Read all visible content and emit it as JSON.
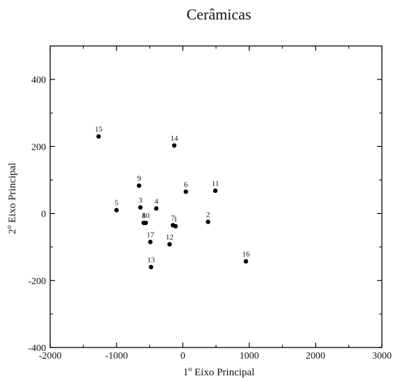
{
  "chart_data": {
    "type": "scatter",
    "title": "Cerâmicas",
    "xlabel_sup": "1",
    "xlabel": "o",
    "xlabel_rest": " Eixo Principal",
    "ylabel_sup": "2",
    "ylabel": "o",
    "ylabel_rest": " Eixo Principal",
    "xlim": [
      -2000,
      3000
    ],
    "ylim": [
      -400,
      500
    ],
    "x_ticks": [
      -2000,
      -1000,
      0,
      1000,
      2000,
      3000
    ],
    "y_ticks": [
      -400,
      -200,
      0,
      200,
      400
    ],
    "grid": false,
    "points": [
      {
        "label": "15",
        "x": -1270,
        "y": 230
      },
      {
        "label": "14",
        "x": -130,
        "y": 203
      },
      {
        "label": "9",
        "x": -660,
        "y": 83
      },
      {
        "label": "6",
        "x": 45,
        "y": 65
      },
      {
        "label": "11",
        "x": 490,
        "y": 68
      },
      {
        "label": "5",
        "x": -1000,
        "y": 10
      },
      {
        "label": "3",
        "x": -640,
        "y": 18
      },
      {
        "label": "4",
        "x": -400,
        "y": 15
      },
      {
        "label": "8",
        "x": -590,
        "y": -28
      },
      {
        "label": "10",
        "x": -560,
        "y": -28
      },
      {
        "label": "7",
        "x": -150,
        "y": -35
      },
      {
        "label": "1",
        "x": -110,
        "y": -38
      },
      {
        "label": "2",
        "x": 380,
        "y": -25
      },
      {
        "label": "17",
        "x": -490,
        "y": -85
      },
      {
        "label": "12",
        "x": -200,
        "y": -92
      },
      {
        "label": "16",
        "x": 950,
        "y": -143
      },
      {
        "label": "13",
        "x": -480,
        "y": -160
      }
    ]
  }
}
